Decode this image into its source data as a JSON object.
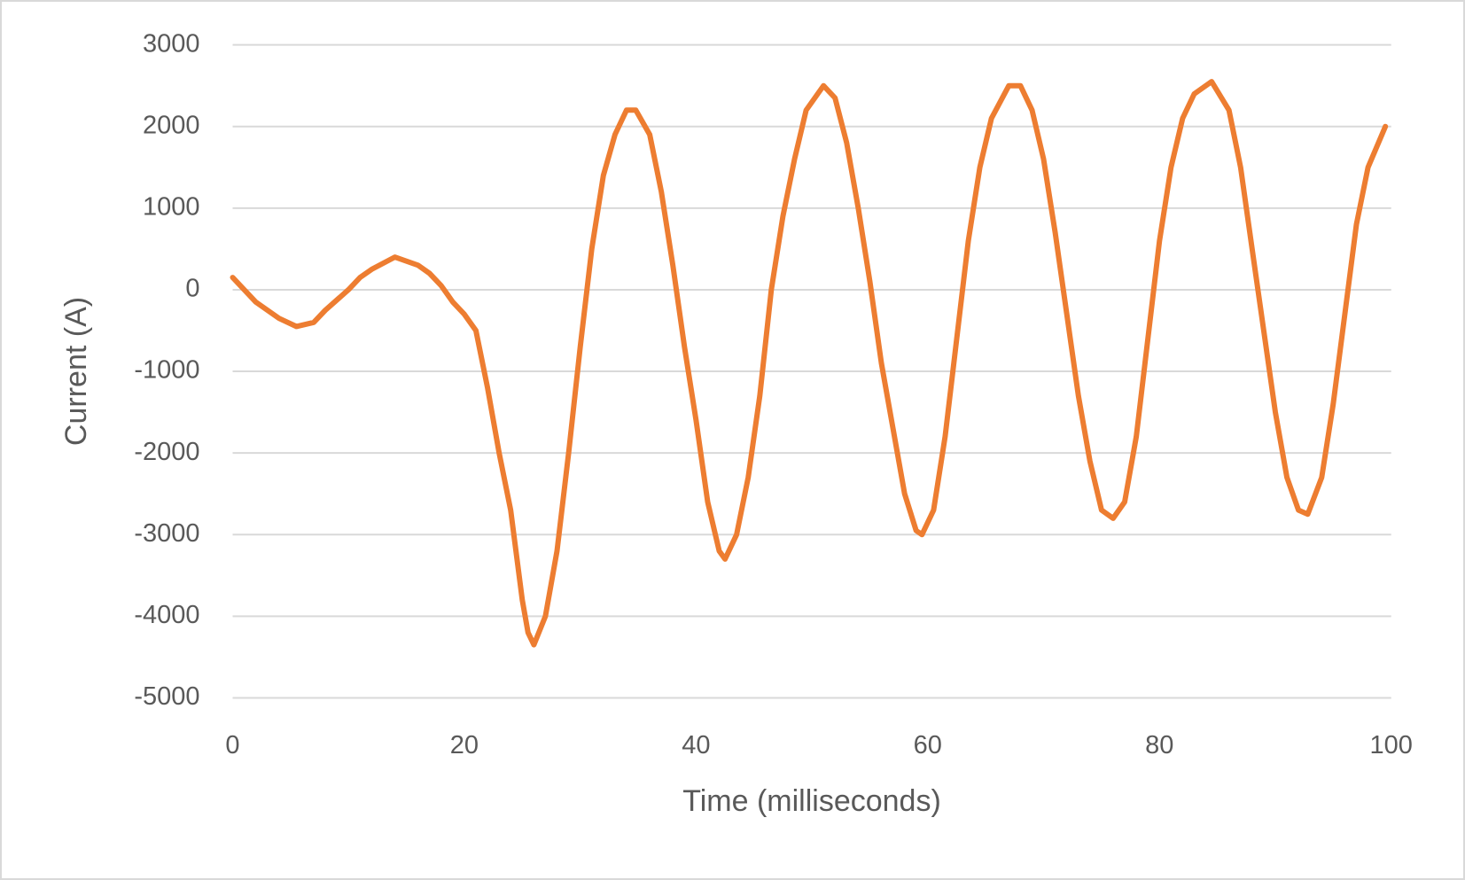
{
  "chart_data": {
    "type": "line",
    "x_label": "Time (milliseconds)",
    "y_label": "Current (A)",
    "x": [
      0,
      2,
      4,
      5.5,
      7,
      8,
      10,
      11,
      12,
      14,
      16,
      17,
      18,
      19,
      20,
      21,
      22,
      23,
      24,
      25,
      25.5,
      26,
      27,
      28,
      29,
      30,
      31,
      32,
      33,
      34,
      34.8,
      36,
      37,
      38,
      39,
      40,
      41,
      42,
      42.5,
      43.5,
      44.5,
      45.5,
      46.5,
      47.5,
      48.5,
      49.5,
      51,
      52,
      53,
      54,
      55,
      56,
      57,
      58,
      59,
      59.5,
      60.5,
      61.5,
      62.5,
      63.5,
      64.5,
      65.5,
      67,
      68,
      69,
      70,
      71,
      72,
      73,
      74,
      75,
      76,
      77,
      78,
      79,
      80,
      81,
      82,
      83,
      84.5,
      86,
      87,
      88,
      89,
      90,
      91,
      92,
      92.8,
      94,
      95,
      96,
      97,
      98,
      99.5
    ],
    "values": [
      150,
      -150,
      -350,
      -450,
      -400,
      -250,
      0,
      150,
      250,
      400,
      300,
      200,
      50,
      -150,
      -300,
      -500,
      -1200,
      -2000,
      -2700,
      -3800,
      -4200,
      -4350,
      -4000,
      -3200,
      -2000,
      -700,
      500,
      1400,
      1900,
      2200,
      2200,
      1900,
      1200,
      300,
      -700,
      -1600,
      -2600,
      -3200,
      -3300,
      -3000,
      -2300,
      -1300,
      0,
      900,
      1600,
      2200,
      2500,
      2350,
      1800,
      1000,
      100,
      -900,
      -1700,
      -2500,
      -2950,
      -3000,
      -2700,
      -1800,
      -600,
      600,
      1500,
      2100,
      2500,
      2500,
      2200,
      1600,
      700,
      -300,
      -1300,
      -2100,
      -2700,
      -2800,
      -2600,
      -1800,
      -600,
      600,
      1500,
      2100,
      2400,
      2550,
      2200,
      1500,
      500,
      -500,
      -1500,
      -2300,
      -2700,
      -2750,
      -2300,
      -1400,
      -300,
      800,
      1500,
      2000
    ],
    "color": "#ed7d31",
    "xlim": [
      0,
      100
    ],
    "xticks": [
      0,
      20,
      40,
      60,
      80,
      100
    ],
    "ylim": [
      -5000,
      3000
    ],
    "yticks": [
      -5000,
      -4000,
      -3000,
      -2000,
      -1000,
      0,
      1000,
      2000,
      3000
    ],
    "grid": true
  }
}
